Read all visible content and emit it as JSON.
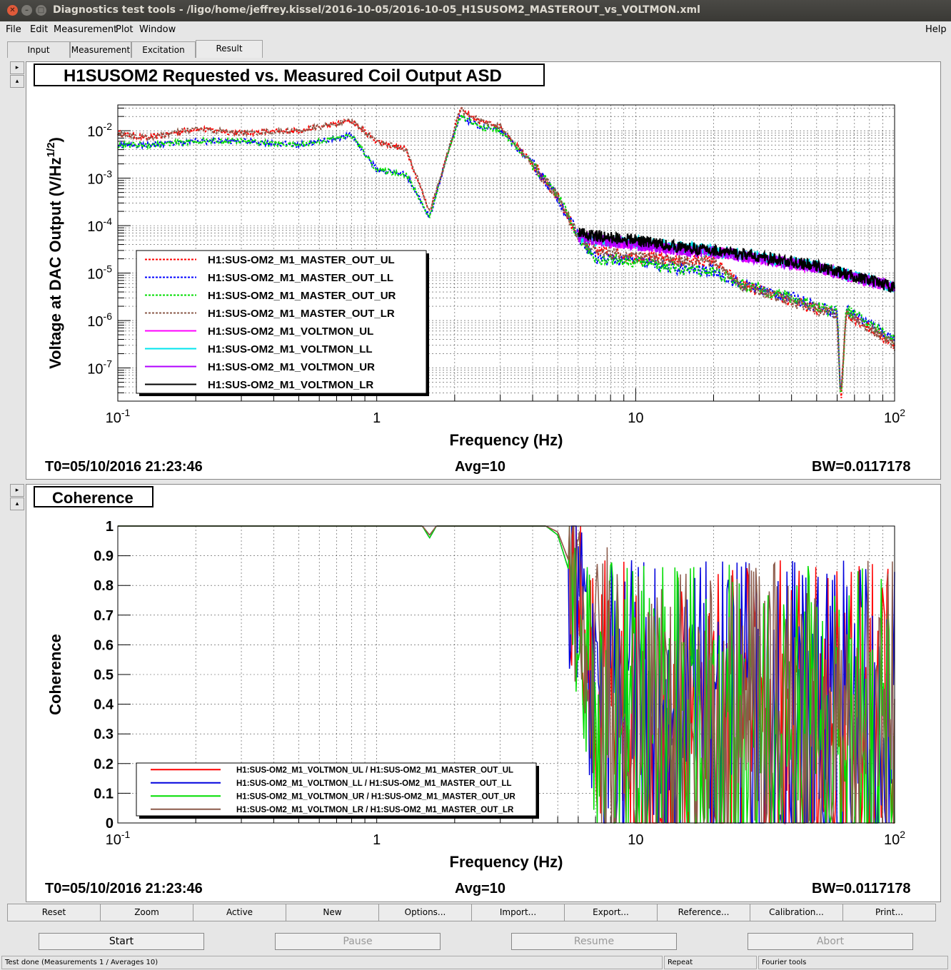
{
  "window": {
    "title": "Diagnostics test tools - /ligo/home/jeffrey.kissel/2016-10-05/2016-10-05_H1SUSOM2_MASTEROUT_vs_VOLTMON.xml"
  },
  "menu": {
    "file": "File",
    "edit": "Edit",
    "measurement": "Measurement",
    "plot": "Plot",
    "window": "Window",
    "help": "Help"
  },
  "tabs": [
    "Input",
    "Measurement",
    "Excitation",
    "Result"
  ],
  "active_tab": "Result",
  "plot1": {
    "title": "H1SUSOM2 Requested vs. Measured Coil Output ASD",
    "t0": "T0=05/10/2016 21:23:46",
    "avg": "Avg=10",
    "bw": "BW=0.0117178"
  },
  "plot2": {
    "title": "Coherence",
    "t0": "T0=05/10/2016 21:23:46",
    "avg": "Avg=10",
    "bw": "BW=0.0117178"
  },
  "chart_data": [
    {
      "type": "line",
      "ylabel": "Voltage at DAC Output (V/Hz^1/2)",
      "xlabel": "Frequency (Hz)",
      "xscale": "log",
      "yscale": "log",
      "xlim": [
        0.1,
        100
      ],
      "ylim": [
        2e-08,
        0.035
      ],
      "xticks": [
        "10^-1",
        "1",
        "10",
        "10^2"
      ],
      "yticks": [
        "10^-7",
        "10^-6",
        "10^-5",
        "10^-4",
        "10^-3",
        "10^-2"
      ],
      "grid": true,
      "legend": "lower-left",
      "series": [
        {
          "name": "H1:SUS-OM2_M1_MASTER_OUT_UL",
          "color": "#ff0000",
          "style": "dotted",
          "x": [
            0.1,
            0.13,
            0.2,
            0.3,
            0.5,
            0.8,
            1.0,
            1.3,
            1.6,
            1.8,
            2.1,
            2.5,
            3,
            4,
            5,
            6,
            7,
            10,
            15,
            20,
            25,
            40,
            60,
            62,
            65,
            100
          ],
          "y": [
            0.009,
            0.007,
            0.011,
            0.009,
            0.01,
            0.016,
            0.006,
            0.004,
            0.0002,
            0.0015,
            0.028,
            0.016,
            0.012,
            0.002,
            0.0004,
            6e-05,
            3e-05,
            2.2e-05,
            1.8e-05,
            1.8e-05,
            6e-06,
            2.5e-06,
            1.3e-06,
            2e-08,
            1.5e-06,
            3e-07
          ]
        },
        {
          "name": "H1:SUS-OM2_M1_MASTER_OUT_LL",
          "color": "#0000ff",
          "style": "dotted",
          "x": [
            0.1,
            0.13,
            0.2,
            0.3,
            0.5,
            0.8,
            1.0,
            1.3,
            1.6,
            1.8,
            2.1,
            2.5,
            3,
            4,
            5,
            6,
            7,
            10,
            15,
            20,
            25,
            40,
            60,
            62,
            65,
            100
          ],
          "y": [
            0.005,
            0.005,
            0.006,
            0.006,
            0.005,
            0.008,
            0.0015,
            0.0012,
            0.00015,
            0.0015,
            0.02,
            0.012,
            0.01,
            0.002,
            0.0004,
            6e-05,
            2e-05,
            1.8e-05,
            1.2e-05,
            1.1e-05,
            6e-06,
            3e-06,
            1.5e-06,
            2e-08,
            1.7e-06,
            4e-07
          ]
        },
        {
          "name": "H1:SUS-OM2_M1_MASTER_OUT_UR",
          "color": "#00dd00",
          "style": "dotted",
          "x": [
            0.1,
            0.13,
            0.2,
            0.3,
            0.5,
            0.8,
            1.0,
            1.3,
            1.6,
            1.8,
            2.1,
            2.5,
            3,
            4,
            5,
            6,
            7,
            10,
            15,
            20,
            25,
            40,
            60,
            62,
            65,
            100
          ],
          "y": [
            0.005,
            0.005,
            0.006,
            0.006,
            0.005,
            0.008,
            0.0015,
            0.0012,
            0.00015,
            0.0015,
            0.02,
            0.012,
            0.01,
            0.002,
            0.0004,
            6e-05,
            2e-05,
            1.8e-05,
            1.2e-05,
            1.1e-05,
            6e-06,
            3e-06,
            1.5e-06,
            2e-08,
            1.7e-06,
            4e-07
          ]
        },
        {
          "name": "H1:SUS-OM2_M1_MASTER_OUT_LR",
          "color": "#8b5a4a",
          "style": "dotted",
          "x": [
            0.1,
            0.13,
            0.2,
            0.3,
            0.5,
            0.8,
            1.0,
            1.3,
            1.6,
            1.8,
            2.1,
            2.5,
            3,
            4,
            5,
            6,
            7,
            10,
            15,
            20,
            25,
            40,
            60,
            62,
            65,
            100
          ],
          "y": [
            0.009,
            0.007,
            0.011,
            0.009,
            0.01,
            0.016,
            0.006,
            0.004,
            0.0002,
            0.0015,
            0.028,
            0.016,
            0.012,
            0.002,
            0.0004,
            6e-05,
            3e-05,
            2.2e-05,
            1.8e-05,
            1.8e-05,
            6e-06,
            2.5e-06,
            1.3e-06,
            2e-08,
            1.5e-06,
            3e-07
          ]
        },
        {
          "name": "H1:SUS-OM2_M1_VOLTMON_UL",
          "color": "#ff00ff",
          "style": "solid",
          "x": [
            6,
            7,
            10,
            15,
            20,
            30,
            50,
            100
          ],
          "y": [
            6e-05,
            5e-05,
            4e-05,
            3e-05,
            2.8e-05,
            2e-05,
            1.3e-05,
            5e-06
          ]
        },
        {
          "name": "H1:SUS-OM2_M1_VOLTMON_LL",
          "color": "#00e5ee",
          "style": "solid",
          "x": [
            6,
            7,
            10,
            15,
            20,
            30,
            50,
            100
          ],
          "y": [
            6e-05,
            5e-05,
            4.5e-05,
            3.5e-05,
            3e-05,
            2.2e-05,
            1.4e-05,
            5e-06
          ]
        },
        {
          "name": "H1:SUS-OM2_M1_VOLTMON_UR",
          "color": "#b000ff",
          "style": "solid",
          "x": [
            6,
            7,
            10,
            15,
            20,
            30,
            50,
            100
          ],
          "y": [
            6e-05,
            5e-05,
            4e-05,
            3e-05,
            2.8e-05,
            2e-05,
            1.3e-05,
            5e-06
          ]
        },
        {
          "name": "H1:SUS-OM2_M1_VOLTMON_LR",
          "color": "#000000",
          "style": "solid",
          "x": [
            6,
            7,
            10,
            15,
            20,
            30,
            50,
            100
          ],
          "y": [
            7e-05,
            6e-05,
            5e-05,
            3.5e-05,
            3e-05,
            2.2e-05,
            1.4e-05,
            5e-06
          ]
        }
      ]
    },
    {
      "type": "line",
      "ylabel": "Coherence",
      "xlabel": "Frequency (Hz)",
      "xscale": "log",
      "yscale": "linear",
      "xlim": [
        0.1,
        100
      ],
      "ylim": [
        0,
        1
      ],
      "xticks": [
        "10^-1",
        "1",
        "10",
        "10^2"
      ],
      "yticks": [
        "0",
        "0.1",
        "0.2",
        "0.3",
        "0.4",
        "0.5",
        "0.6",
        "0.7",
        "0.8",
        "0.9",
        "1"
      ],
      "grid": true,
      "legend": "lower-left",
      "series": [
        {
          "name": "H1:SUS-OM2_M1_VOLTMON_UL / H1:SUS-OM2_M1_MASTER_OUT_UL",
          "color": "#ff0000",
          "x": [
            0.1,
            1.5,
            1.6,
            1.7,
            4.5,
            5,
            6,
            7,
            10,
            20,
            100
          ],
          "y": [
            1,
            1,
            0.97,
            1,
            1,
            0.98,
            0.8,
            0.4,
            0.3,
            0.3,
            0.3
          ]
        },
        {
          "name": "H1:SUS-OM2_M1_VOLTMON_LL / H1:SUS-OM2_M1_MASTER_OUT_LL",
          "color": "#0000dd",
          "x": [
            0.1,
            1.5,
            1.6,
            1.7,
            4.5,
            5,
            6,
            7,
            10,
            20,
            100
          ],
          "y": [
            1,
            1,
            0.96,
            1,
            1,
            0.97,
            0.75,
            0.35,
            0.3,
            0.3,
            0.3
          ]
        },
        {
          "name": "H1:SUS-OM2_M1_VOLTMON_UR / H1:SUS-OM2_M1_MASTER_OUT_UR",
          "color": "#00dd00",
          "x": [
            0.1,
            1.5,
            1.6,
            1.7,
            4.5,
            5,
            6,
            7,
            10,
            20,
            100
          ],
          "y": [
            1,
            1,
            0.96,
            1,
            1,
            0.97,
            0.75,
            0.35,
            0.3,
            0.3,
            0.3
          ]
        },
        {
          "name": "H1:SUS-OM2_M1_VOLTMON_LR / H1:SUS-OM2_M1_MASTER_OUT_LR",
          "color": "#8b5a4a",
          "x": [
            0.1,
            1.5,
            1.6,
            1.7,
            4.5,
            5,
            6,
            7,
            10,
            20,
            100
          ],
          "y": [
            1,
            1,
            0.97,
            1,
            1,
            0.98,
            0.8,
            0.4,
            0.3,
            0.3,
            0.3
          ]
        }
      ]
    }
  ],
  "toolbar": [
    "Reset",
    "Zoom",
    "Active",
    "New",
    "Options...",
    "Import...",
    "Export...",
    "Reference...",
    "Calibration...",
    "Print..."
  ],
  "controls": {
    "start": "Start",
    "pause": "Pause",
    "resume": "Resume",
    "abort": "Abort"
  },
  "status": {
    "message": "Test done (Measurements 1 / Averages 10)",
    "mode": "Repeat",
    "tool": "Fourier tools"
  }
}
